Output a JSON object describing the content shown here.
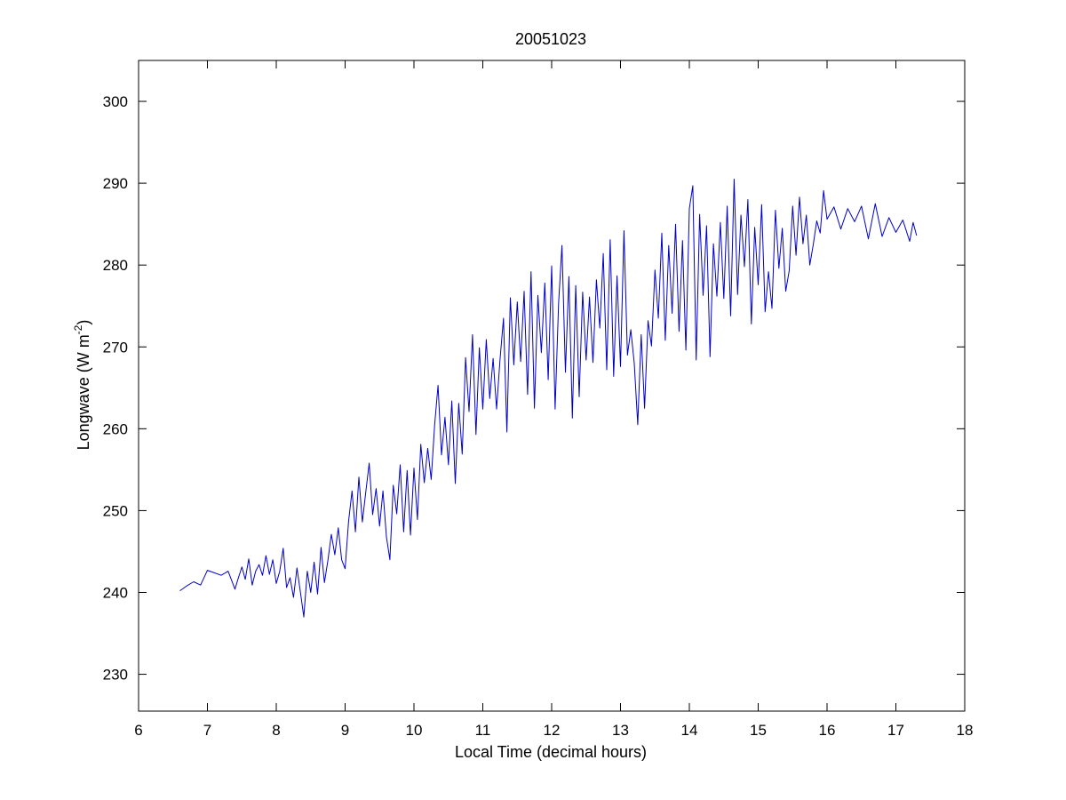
{
  "chart_data": {
    "type": "line",
    "title": "20051023",
    "xlabel": "Local Time (decimal hours)",
    "ylabel": {
      "prefix": "Longwave (W m",
      "superscript": "-2",
      "suffix": ")"
    },
    "xlim": [
      6,
      18
    ],
    "ylim": [
      225.5,
      305
    ],
    "xticks": [
      6,
      7,
      8,
      9,
      10,
      11,
      12,
      13,
      14,
      15,
      16,
      17,
      18
    ],
    "yticks": [
      230,
      240,
      250,
      260,
      270,
      280,
      290,
      300
    ],
    "grid": false,
    "series": [
      {
        "color": "#0000cc",
        "x": [
          6.6,
          6.7,
          6.8,
          6.9,
          7.0,
          7.1,
          7.2,
          7.3,
          7.4,
          7.45,
          7.5,
          7.55,
          7.6,
          7.65,
          7.7,
          7.75,
          7.8,
          7.85,
          7.9,
          7.95,
          8.0,
          8.05,
          8.1,
          8.15,
          8.2,
          8.25,
          8.3,
          8.35,
          8.4,
          8.45,
          8.5,
          8.55,
          8.6,
          8.65,
          8.7,
          8.75,
          8.8,
          8.85,
          8.9,
          8.95,
          9.0,
          9.05,
          9.1,
          9.15,
          9.2,
          9.25,
          9.3,
          9.35,
          9.4,
          9.45,
          9.5,
          9.55,
          9.6,
          9.65,
          9.7,
          9.75,
          9.8,
          9.85,
          9.9,
          9.95,
          10.0,
          10.05,
          10.1,
          10.15,
          10.2,
          10.25,
          10.3,
          10.35,
          10.4,
          10.45,
          10.5,
          10.55,
          10.6,
          10.65,
          10.7,
          10.75,
          10.8,
          10.85,
          10.9,
          10.95,
          11.0,
          11.05,
          11.1,
          11.15,
          11.2,
          11.25,
          11.3,
          11.35,
          11.4,
          11.45,
          11.5,
          11.55,
          11.6,
          11.65,
          11.7,
          11.75,
          11.8,
          11.85,
          11.9,
          11.95,
          12.0,
          12.05,
          12.1,
          12.15,
          12.2,
          12.25,
          12.3,
          12.35,
          12.4,
          12.45,
          12.5,
          12.55,
          12.6,
          12.65,
          12.7,
          12.75,
          12.8,
          12.85,
          12.9,
          12.95,
          13.0,
          13.05,
          13.1,
          13.15,
          13.2,
          13.25,
          13.3,
          13.35,
          13.4,
          13.45,
          13.5,
          13.55,
          13.6,
          13.65,
          13.7,
          13.75,
          13.8,
          13.85,
          13.9,
          13.95,
          14.0,
          14.05,
          14.1,
          14.15,
          14.2,
          14.25,
          14.3,
          14.35,
          14.4,
          14.45,
          14.5,
          14.55,
          14.6,
          14.65,
          14.7,
          14.75,
          14.8,
          14.85,
          14.9,
          14.95,
          15.0,
          15.05,
          15.1,
          15.15,
          15.2,
          15.25,
          15.3,
          15.35,
          15.4,
          15.45,
          15.5,
          15.55,
          15.6,
          15.65,
          15.7,
          15.75,
          15.8,
          15.85,
          15.9,
          15.95,
          16.0,
          16.1,
          16.2,
          16.3,
          16.4,
          16.5,
          16.6,
          16.7,
          16.8,
          16.9,
          17.0,
          17.1,
          17.2,
          17.25,
          17.3
        ],
        "y": [
          240.2,
          240.8,
          241.3,
          240.9,
          242.7,
          242.4,
          242.1,
          242.6,
          240.4,
          241.8,
          243.1,
          241.6,
          244.1,
          240.9,
          242.6,
          243.4,
          242.1,
          244.5,
          242.2,
          244.0,
          241.1,
          242.6,
          245.4,
          240.6,
          241.8,
          239.4,
          243.0,
          240.1,
          237.0,
          242.6,
          240.0,
          243.7,
          239.8,
          245.5,
          241.2,
          243.9,
          247.1,
          244.6,
          247.9,
          244.0,
          242.9,
          248.7,
          252.4,
          247.4,
          254.1,
          248.6,
          252.3,
          255.8,
          249.5,
          252.7,
          248.1,
          252.4,
          246.8,
          244.0,
          253.1,
          249.6,
          255.6,
          247.4,
          254.9,
          247.0,
          255.2,
          248.9,
          258.1,
          253.4,
          257.6,
          253.8,
          260.5,
          265.3,
          256.8,
          261.4,
          255.6,
          263.4,
          253.3,
          263.1,
          256.9,
          268.7,
          262.1,
          271.5,
          259.3,
          269.9,
          262.4,
          270.9,
          263.7,
          268.6,
          262.4,
          268.5,
          273.5,
          259.6,
          276.0,
          267.8,
          275.5,
          268.2,
          276.8,
          264.2,
          279.2,
          262.5,
          276.3,
          269.3,
          277.8,
          266.0,
          279.9,
          262.4,
          275.3,
          282.4,
          266.9,
          278.6,
          261.3,
          277.5,
          263.9,
          276.7,
          268.4,
          276.1,
          268.1,
          278.2,
          272.3,
          281.4,
          267.2,
          283.1,
          266.4,
          278.7,
          267.6,
          284.2,
          269.0,
          272.1,
          268.0,
          260.5,
          271.5,
          262.5,
          273.2,
          270.1,
          279.4,
          273.5,
          283.9,
          270.8,
          282.4,
          274.1,
          285.0,
          271.9,
          283.0,
          269.6,
          286.9,
          289.7,
          268.4,
          286.2,
          276.3,
          284.8,
          268.8,
          282.6,
          276.2,
          285.2,
          275.9,
          287.2,
          273.8,
          290.5,
          276.4,
          286.1,
          279.8,
          288.0,
          272.8,
          284.6,
          277.6,
          287.4,
          274.3,
          279.2,
          274.7,
          286.7,
          279.6,
          284.5,
          276.8,
          279.3,
          287.2,
          281.2,
          288.3,
          282.6,
          286.1,
          280.0,
          282.5,
          285.4,
          283.9,
          289.1,
          285.6,
          287.1,
          284.4,
          286.9,
          285.3,
          287.2,
          283.2,
          287.5,
          283.5,
          285.8,
          284.0,
          285.5,
          282.9,
          285.2,
          283.6
        ]
      }
    ]
  }
}
